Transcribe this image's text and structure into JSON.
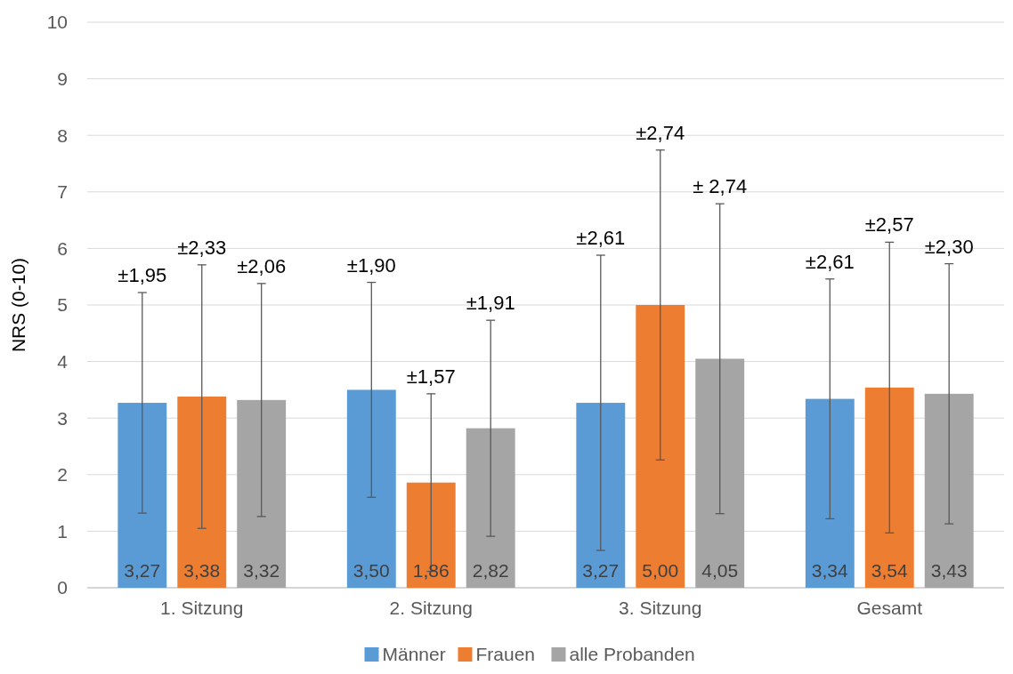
{
  "chart_data": {
    "type": "bar",
    "ylabel": "NRS (0-10)",
    "categories": [
      "1. Sitzung",
      "2. Sitzung",
      "3. Sitzung",
      "Gesamt"
    ],
    "series": [
      {
        "name": "Männer",
        "color": "#5b9bd5",
        "values": [
          3.27,
          3.5,
          3.27,
          3.34
        ],
        "errors": [
          1.95,
          1.9,
          2.61,
          2.12
        ],
        "value_labels": [
          "3,27",
          "3,50",
          "3,27",
          "3,34"
        ]
      },
      {
        "name": "Frauen",
        "color": "#ed7d31",
        "values": [
          3.38,
          1.86,
          5.0,
          3.54
        ],
        "errors": [
          2.33,
          1.57,
          2.74,
          2.57
        ],
        "value_labels": [
          "3,38",
          "1,86",
          "5,00",
          "3,54"
        ]
      },
      {
        "name": "alle Probanden",
        "color": "#a5a5a5",
        "values": [
          3.32,
          2.82,
          4.05,
          3.43
        ],
        "errors": [
          2.06,
          1.91,
          2.74,
          2.3
        ],
        "value_labels": [
          "3,32",
          "2,82",
          "4,05",
          "3,43"
        ]
      }
    ],
    "annotations": [
      "±1,95",
      "±2,33",
      "±2,06",
      "±1,90",
      "±1,57",
      "±1,91",
      "±2,61",
      "±2,74",
      "± 2,74",
      "±2,61",
      "±2,57",
      "±2,30"
    ],
    "ylim": [
      0,
      10
    ],
    "yticks": [
      0,
      1,
      2,
      3,
      4,
      5,
      6,
      7,
      8,
      9,
      10
    ],
    "grid": "y",
    "legend": "bottom"
  }
}
